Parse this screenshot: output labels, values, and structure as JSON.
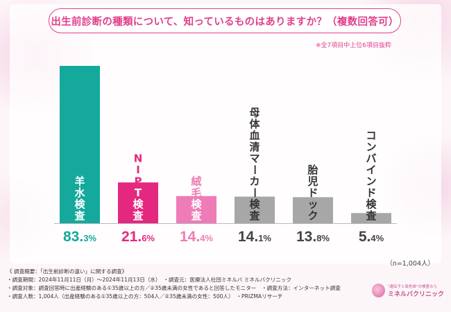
{
  "chart_data": {
    "type": "bar",
    "title": "出生前診断の種類について、知っているものはありますか？（複数回答可）",
    "note": "※全7項目中上位6項目抜粋",
    "categories": [
      "羊水検査",
      "NIPT検査",
      "絨毛検査",
      "母体血清マーカー検査",
      "胎児ドック",
      "コンバインド検査"
    ],
    "values": [
      83.3,
      21.6,
      14.4,
      14.1,
      13.8,
      5.4
    ],
    "value_labels": [
      {
        "num": "83.",
        "unit": "3%"
      },
      {
        "num": "21.",
        "unit": "6%"
      },
      {
        "num": "14.",
        "unit": "4%"
      },
      {
        "num": "14.",
        "unit": "1%"
      },
      {
        "num": "13.",
        "unit": "8%"
      },
      {
        "num": "5.",
        "unit": "4%"
      }
    ],
    "ylim": [
      0,
      83.3
    ],
    "sample_size": "（n=1,004人）",
    "colors": {
      "bars": [
        "#14a99c",
        "#e5287f",
        "#ee7cb6",
        "#a7a7a7",
        "#a7a7a7",
        "#a7a7a7"
      ],
      "label_inside": [
        "#ffffff",
        "#ffffff",
        "#ffffff",
        "#333333",
        "#333333",
        "#333333"
      ],
      "label_outside": [
        "#ffffff",
        "#e5287f",
        "#ee7cb6",
        "#333333",
        "#333333",
        "#333333"
      ],
      "pct": [
        "#14a99c",
        "#e5287f",
        "#ee7cb6",
        "#444444",
        "#444444",
        "#444444"
      ]
    }
  },
  "footer": {
    "lines": [
      "《 調査概要：「出生前診断の違い」に関する調査》",
      "・調査期間：2024年11月11日（月）〜2024年11月13日（水）　・調査元：医療法人社団ミネルバ ミネルバクリニック",
      "・調査対象：調査回答時に出産経験のある①35歳以上の方／②35歳未満の女性であると回答したモニター　・調査方法：インターネット調査",
      "・調査人数：1,004人（出産経験のある①35歳以上の方：504人／②35歳未満の女性：500人）　・PRIZMAリサーチ"
    ]
  },
  "logo": {
    "tagline": "\"遺伝子と染色体\"の検査なら",
    "name": "ミネルバクリニック"
  }
}
